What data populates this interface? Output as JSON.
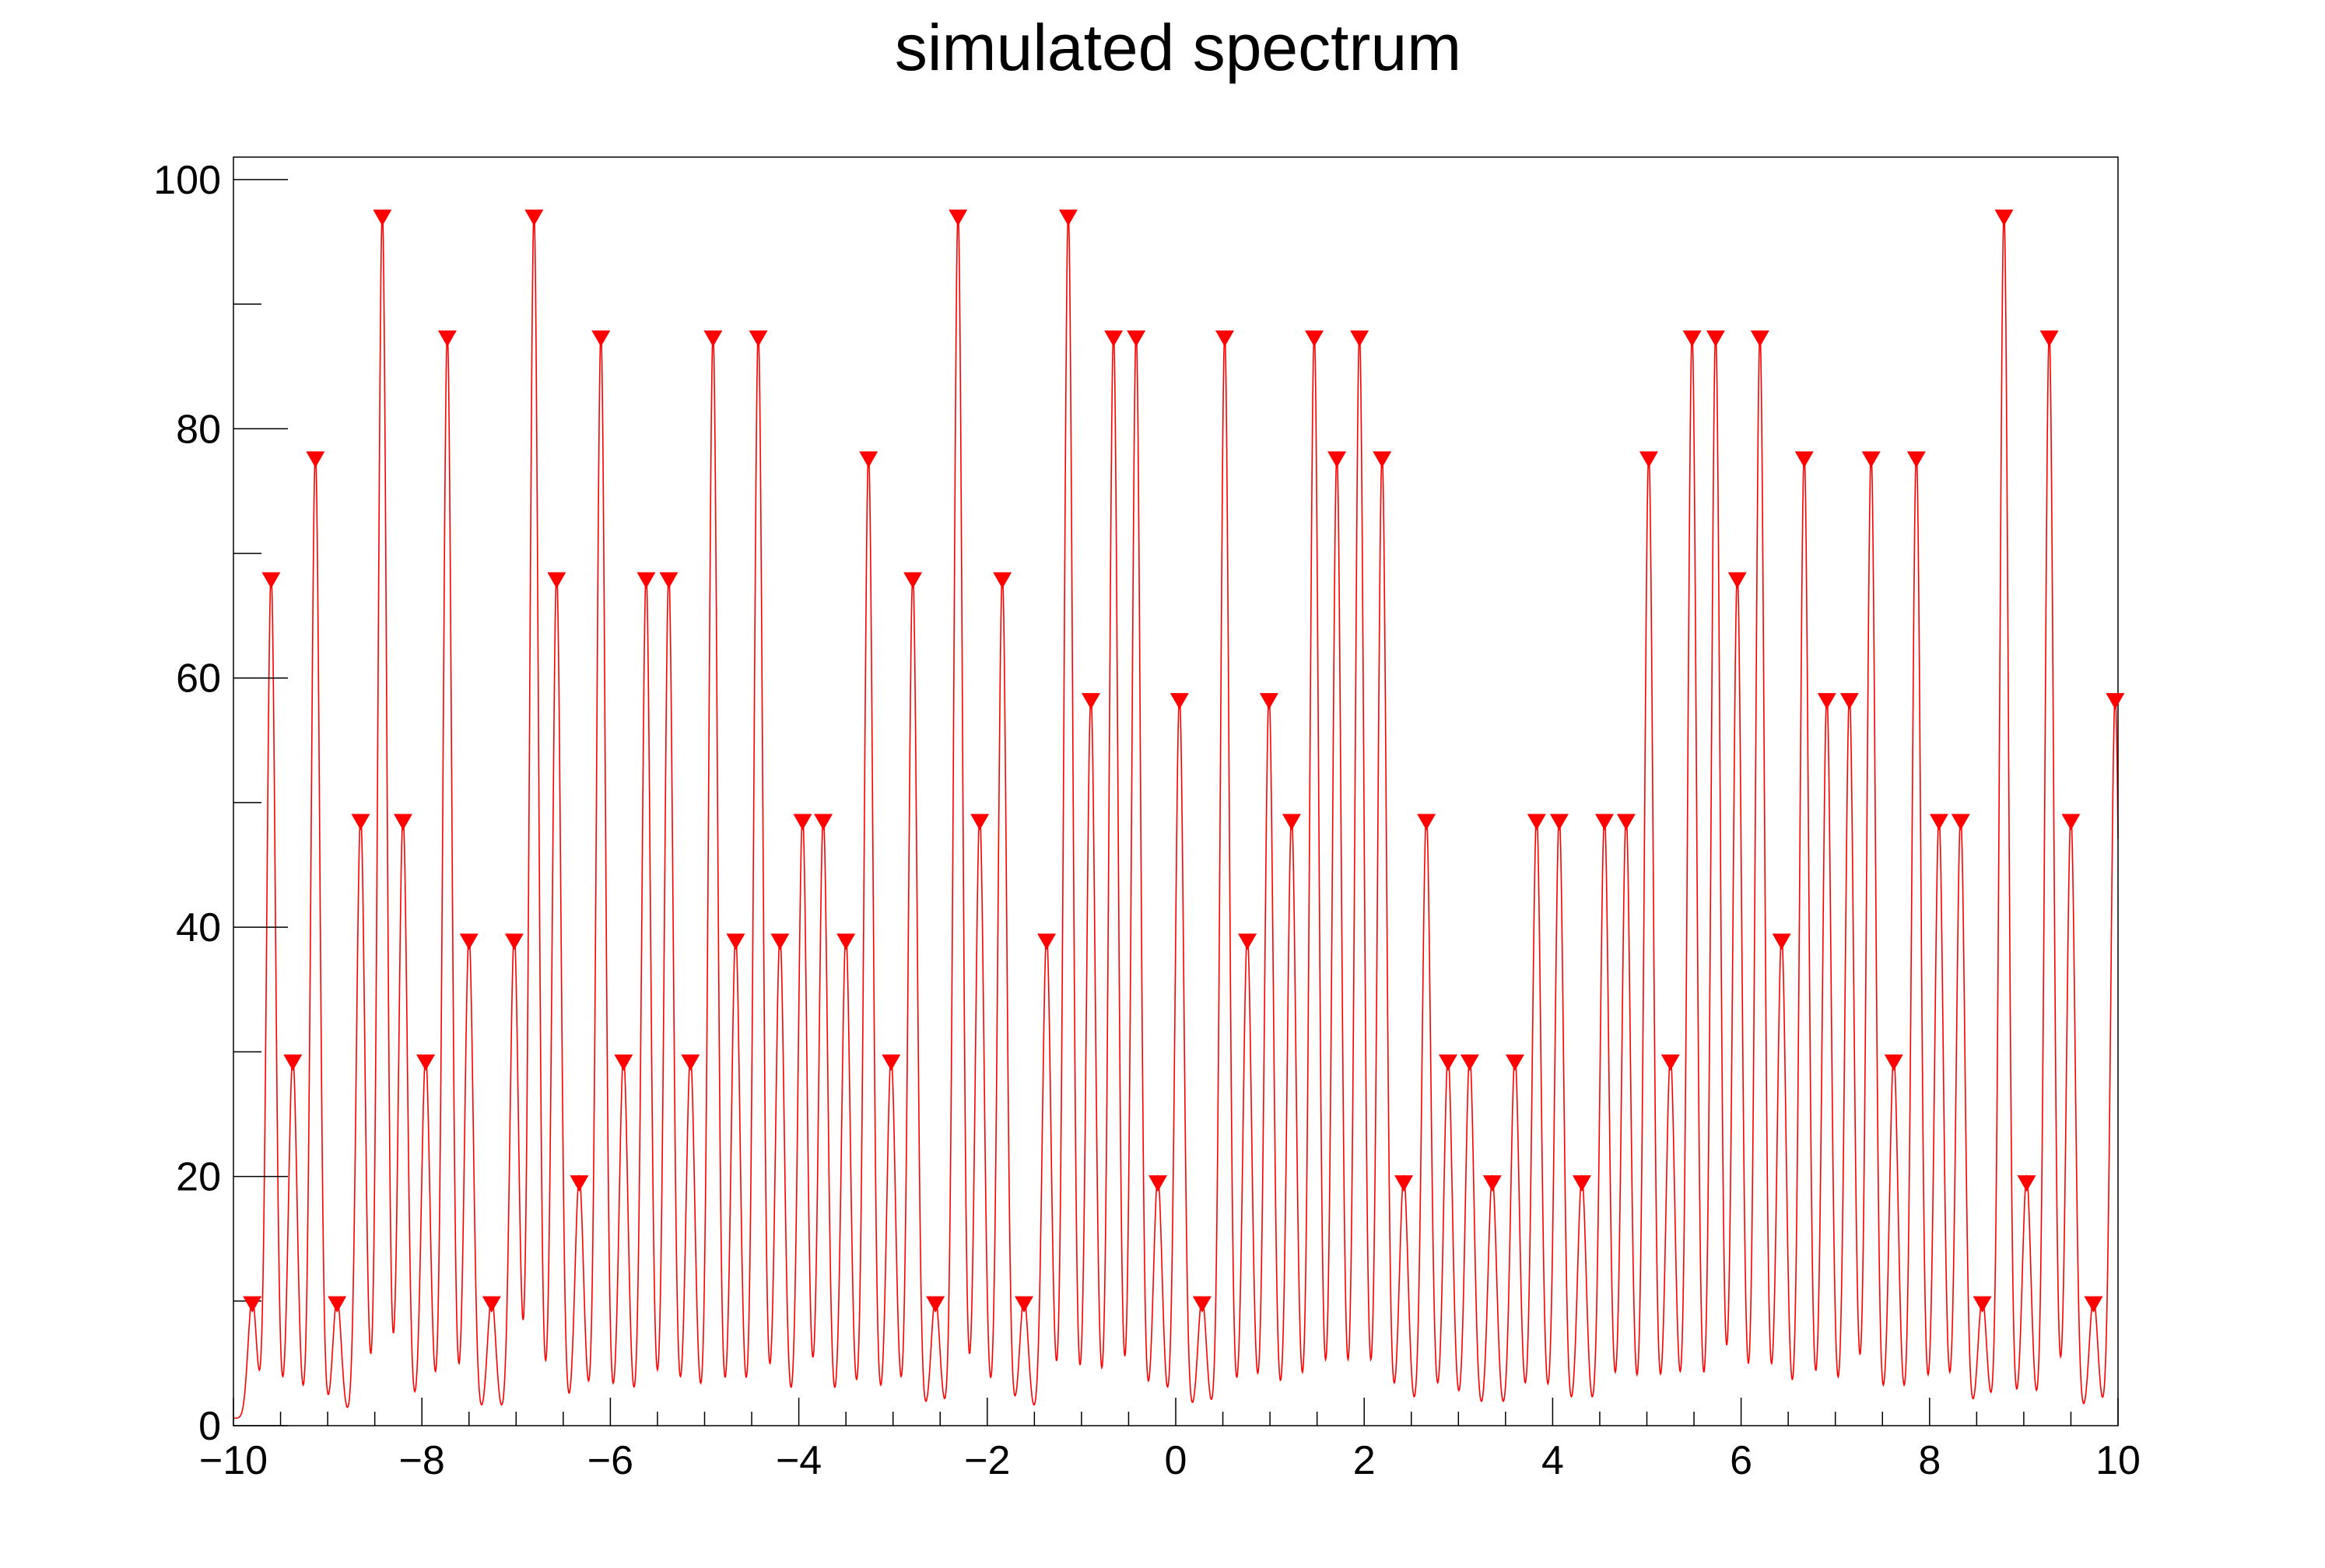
{
  "chart_data": {
    "type": "line",
    "title": "simulated spectrum",
    "xlabel": "",
    "ylabel": "",
    "xlim": [
      -10,
      10
    ],
    "ylim": [
      0,
      101.8
    ],
    "x_ticks": [
      -10,
      -8,
      -6,
      -4,
      -2,
      0,
      2,
      4,
      6,
      8,
      10
    ],
    "x_tick_labels": [
      "−10",
      "−8",
      "−6",
      "−4",
      "−2",
      "0",
      "2",
      "4",
      "6",
      "8",
      "10"
    ],
    "y_ticks": [
      0,
      20,
      40,
      60,
      80,
      100
    ],
    "y_tick_labels": [
      "0",
      "20",
      "40",
      "60",
      "80",
      "100"
    ],
    "grid": false,
    "legend": "none",
    "line_color": "#ff0000",
    "marker_color": "#ff0000",
    "series": [
      {
        "x": [
          -9.8,
          -9.6,
          -9.37,
          -9.13,
          -8.9,
          -8.65,
          -8.42,
          -8.2,
          -7.96,
          -7.73,
          -7.5,
          -7.26,
          -7.02,
          -6.81,
          -6.57,
          -6.33,
          -6.1,
          -5.86,
          -5.62,
          -5.38,
          -5.15,
          -4.91,
          -4.67,
          -4.43,
          -4.2,
          -3.96,
          -3.74,
          -3.5,
          -3.26,
          -3.02,
          -2.79,
          -2.55,
          -2.31,
          -2.08,
          -1.84,
          -1.61,
          -1.37,
          -1.14,
          -0.9,
          -0.66,
          -0.42,
          -0.19,
          0.04,
          0.28,
          0.52,
          0.76,
          0.99,
          1.23,
          1.47,
          1.71,
          1.95,
          2.19,
          2.42,
          2.66,
          2.89,
          3.12,
          3.36,
          3.6,
          3.83,
          4.07,
          4.31,
          4.55,
          4.78,
          5.02,
          5.25,
          5.48,
          5.73,
          5.96,
          6.2,
          6.43,
          6.67,
          6.91,
          7.15,
          7.38,
          7.62,
          7.86,
          8.1,
          8.33,
          8.56,
          8.79,
          9.03,
          9.27,
          9.5,
          9.74,
          9.97
        ],
        "y": [
          9.7,
          67.8,
          29.1,
          77.5,
          9.7,
          48.4,
          96.9,
          48.4,
          29.1,
          87.2,
          38.8,
          9.7,
          38.8,
          96.9,
          67.8,
          19.4,
          87.2,
          29.1,
          67.8,
          67.8,
          29.1,
          87.2,
          38.8,
          87.2,
          38.8,
          48.4,
          48.4,
          38.8,
          77.5,
          29.1,
          67.8,
          9.7,
          96.9,
          48.4,
          67.8,
          9.7,
          38.8,
          96.9,
          58.1,
          87.2,
          87.2,
          19.4,
          58.1,
          9.7,
          87.2,
          38.8,
          58.1,
          48.4,
          87.2,
          77.5,
          87.2,
          77.5,
          19.4,
          48.4,
          29.1,
          29.1,
          19.4,
          29.1,
          48.4,
          48.4,
          19.4,
          48.4,
          48.4,
          77.5,
          29.1,
          87.2,
          87.2,
          67.8,
          87.2,
          38.8,
          77.5,
          58.1,
          58.1,
          77.5,
          29.1,
          77.5,
          48.4,
          48.4,
          9.7,
          96.9,
          19.4,
          87.2,
          48.4,
          9.7,
          58.1
        ]
      }
    ]
  }
}
